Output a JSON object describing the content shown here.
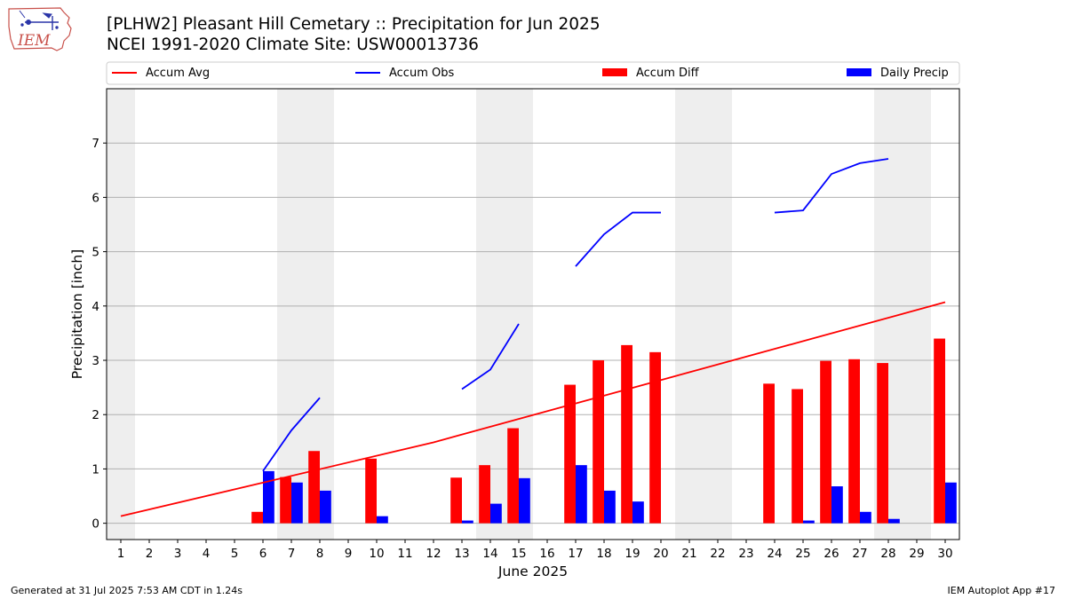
{
  "header": {
    "title_line1": "[PLHW2] Pleasant Hill Cemetary :: Precipitation for Jun 2025",
    "title_line2": "NCEI 1991-2020 Climate Site: USW00013736"
  },
  "logo": {
    "text": "IEM"
  },
  "footer": {
    "generated": "Generated at 31 Jul 2025 7:53 AM CDT in 1.24s",
    "app": "IEM Autoplot App #17"
  },
  "colors": {
    "accum_avg": "#ff0000",
    "accum_obs": "#0000ff",
    "accum_diff": "#ff0000",
    "daily_precip": "#0000ff",
    "weekend_shade": "#eeeeee",
    "grid": "#b0b0b0"
  },
  "chart_data": {
    "type": "bar",
    "xlabel": "June 2025",
    "ylabel": "Precipitation [inch]",
    "xlim": [
      0.5,
      30.5
    ],
    "ylim": [
      -0.3,
      8.0
    ],
    "yticks": [
      0,
      1,
      2,
      3,
      4,
      5,
      6,
      7
    ],
    "days": [
      1,
      2,
      3,
      4,
      5,
      6,
      7,
      8,
      9,
      10,
      11,
      12,
      13,
      14,
      15,
      16,
      17,
      18,
      19,
      20,
      21,
      22,
      23,
      24,
      25,
      26,
      27,
      28,
      29,
      30
    ],
    "weekend_ranges": [
      [
        0.5,
        1.5
      ],
      [
        6.5,
        8.5
      ],
      [
        13.5,
        15.5
      ],
      [
        20.5,
        22.5
      ],
      [
        27.5,
        29.5
      ]
    ],
    "grid": "horizontal",
    "legend": {
      "placement": "top",
      "entries": [
        "Accum Avg",
        "Accum Obs",
        "Accum Diff",
        "Daily Precip"
      ]
    },
    "series": [
      {
        "name": "Accum Avg",
        "type": "line",
        "x": [
          1,
          12,
          30
        ],
        "values": [
          0.13,
          1.49,
          4.07
        ]
      },
      {
        "name": "Accum Obs",
        "type": "line",
        "segments": [
          {
            "x": [
              6,
              7,
              8
            ],
            "values": [
              0.96,
              1.71,
              2.31
            ]
          },
          {
            "x": [
              13,
              14,
              15
            ],
            "values": [
              2.47,
              2.83,
              3.67
            ]
          },
          {
            "x": [
              17,
              18,
              19,
              20
            ],
            "values": [
              4.73,
              5.32,
              5.72,
              5.72
            ]
          },
          {
            "x": [
              24,
              25,
              26,
              27,
              28
            ],
            "values": [
              5.72,
              5.76,
              6.43,
              6.63,
              6.71
            ]
          }
        ]
      },
      {
        "name": "Accum Diff",
        "type": "bar",
        "x": [
          6,
          7,
          8,
          10,
          13,
          14,
          15,
          17,
          18,
          19,
          20,
          24,
          25,
          26,
          27,
          28,
          30
        ],
        "values": [
          0.21,
          0.85,
          1.33,
          1.19,
          0.84,
          1.07,
          1.75,
          2.55,
          3.0,
          3.28,
          3.15,
          2.57,
          2.47,
          2.99,
          3.02,
          2.95,
          3.4
        ]
      },
      {
        "name": "Daily Precip",
        "type": "bar",
        "x": [
          6,
          7,
          8,
          10,
          13,
          14,
          15,
          17,
          18,
          19,
          25,
          26,
          27,
          28,
          30
        ],
        "values": [
          0.96,
          0.75,
          0.6,
          0.13,
          0.05,
          0.36,
          0.83,
          1.07,
          0.6,
          0.4,
          0.05,
          0.68,
          0.21,
          0.08,
          0.75
        ]
      }
    ]
  }
}
